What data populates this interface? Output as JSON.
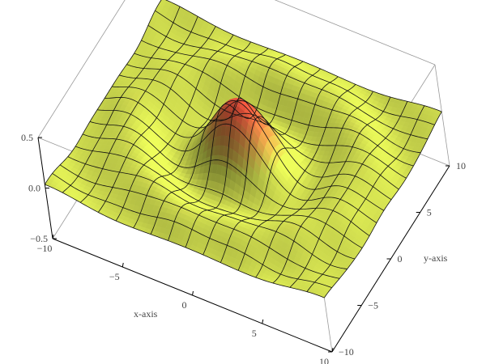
{
  "chart_data": {
    "type": "surface3d",
    "function": "0.5*sin(r)/r, r = sqrt(x^2+y^2)",
    "xlabel": "x-axis",
    "ylabel": "y-axis",
    "zlabel": "",
    "xlim": [
      -10,
      10
    ],
    "ylim": [
      -10,
      10
    ],
    "zlim": [
      -0.5,
      0.5
    ],
    "x_ticks": [
      {
        "v": -10,
        "label": "−10"
      },
      {
        "v": -5,
        "label": "−5"
      },
      {
        "v": 0,
        "label": "0"
      },
      {
        "v": 5,
        "label": "5"
      },
      {
        "v": 10,
        "label": "10"
      }
    ],
    "y_ticks": [
      {
        "v": -10,
        "label": "−10"
      },
      {
        "v": -5,
        "label": "−5"
      },
      {
        "v": 0,
        "label": "0"
      },
      {
        "v": 5,
        "label": "5"
      },
      {
        "v": 10,
        "label": "10"
      }
    ],
    "z_ticks": [
      {
        "v": -0.5,
        "label": "−0.5"
      },
      {
        "v": 0,
        "label": "0.0"
      },
      {
        "v": 0.5,
        "label": "0.5"
      }
    ],
    "mesh_lines": 15,
    "colors": {
      "base": "#cfdc4e",
      "peak": "#e0503a",
      "mesh": "#111111",
      "box": "#999999"
    }
  }
}
